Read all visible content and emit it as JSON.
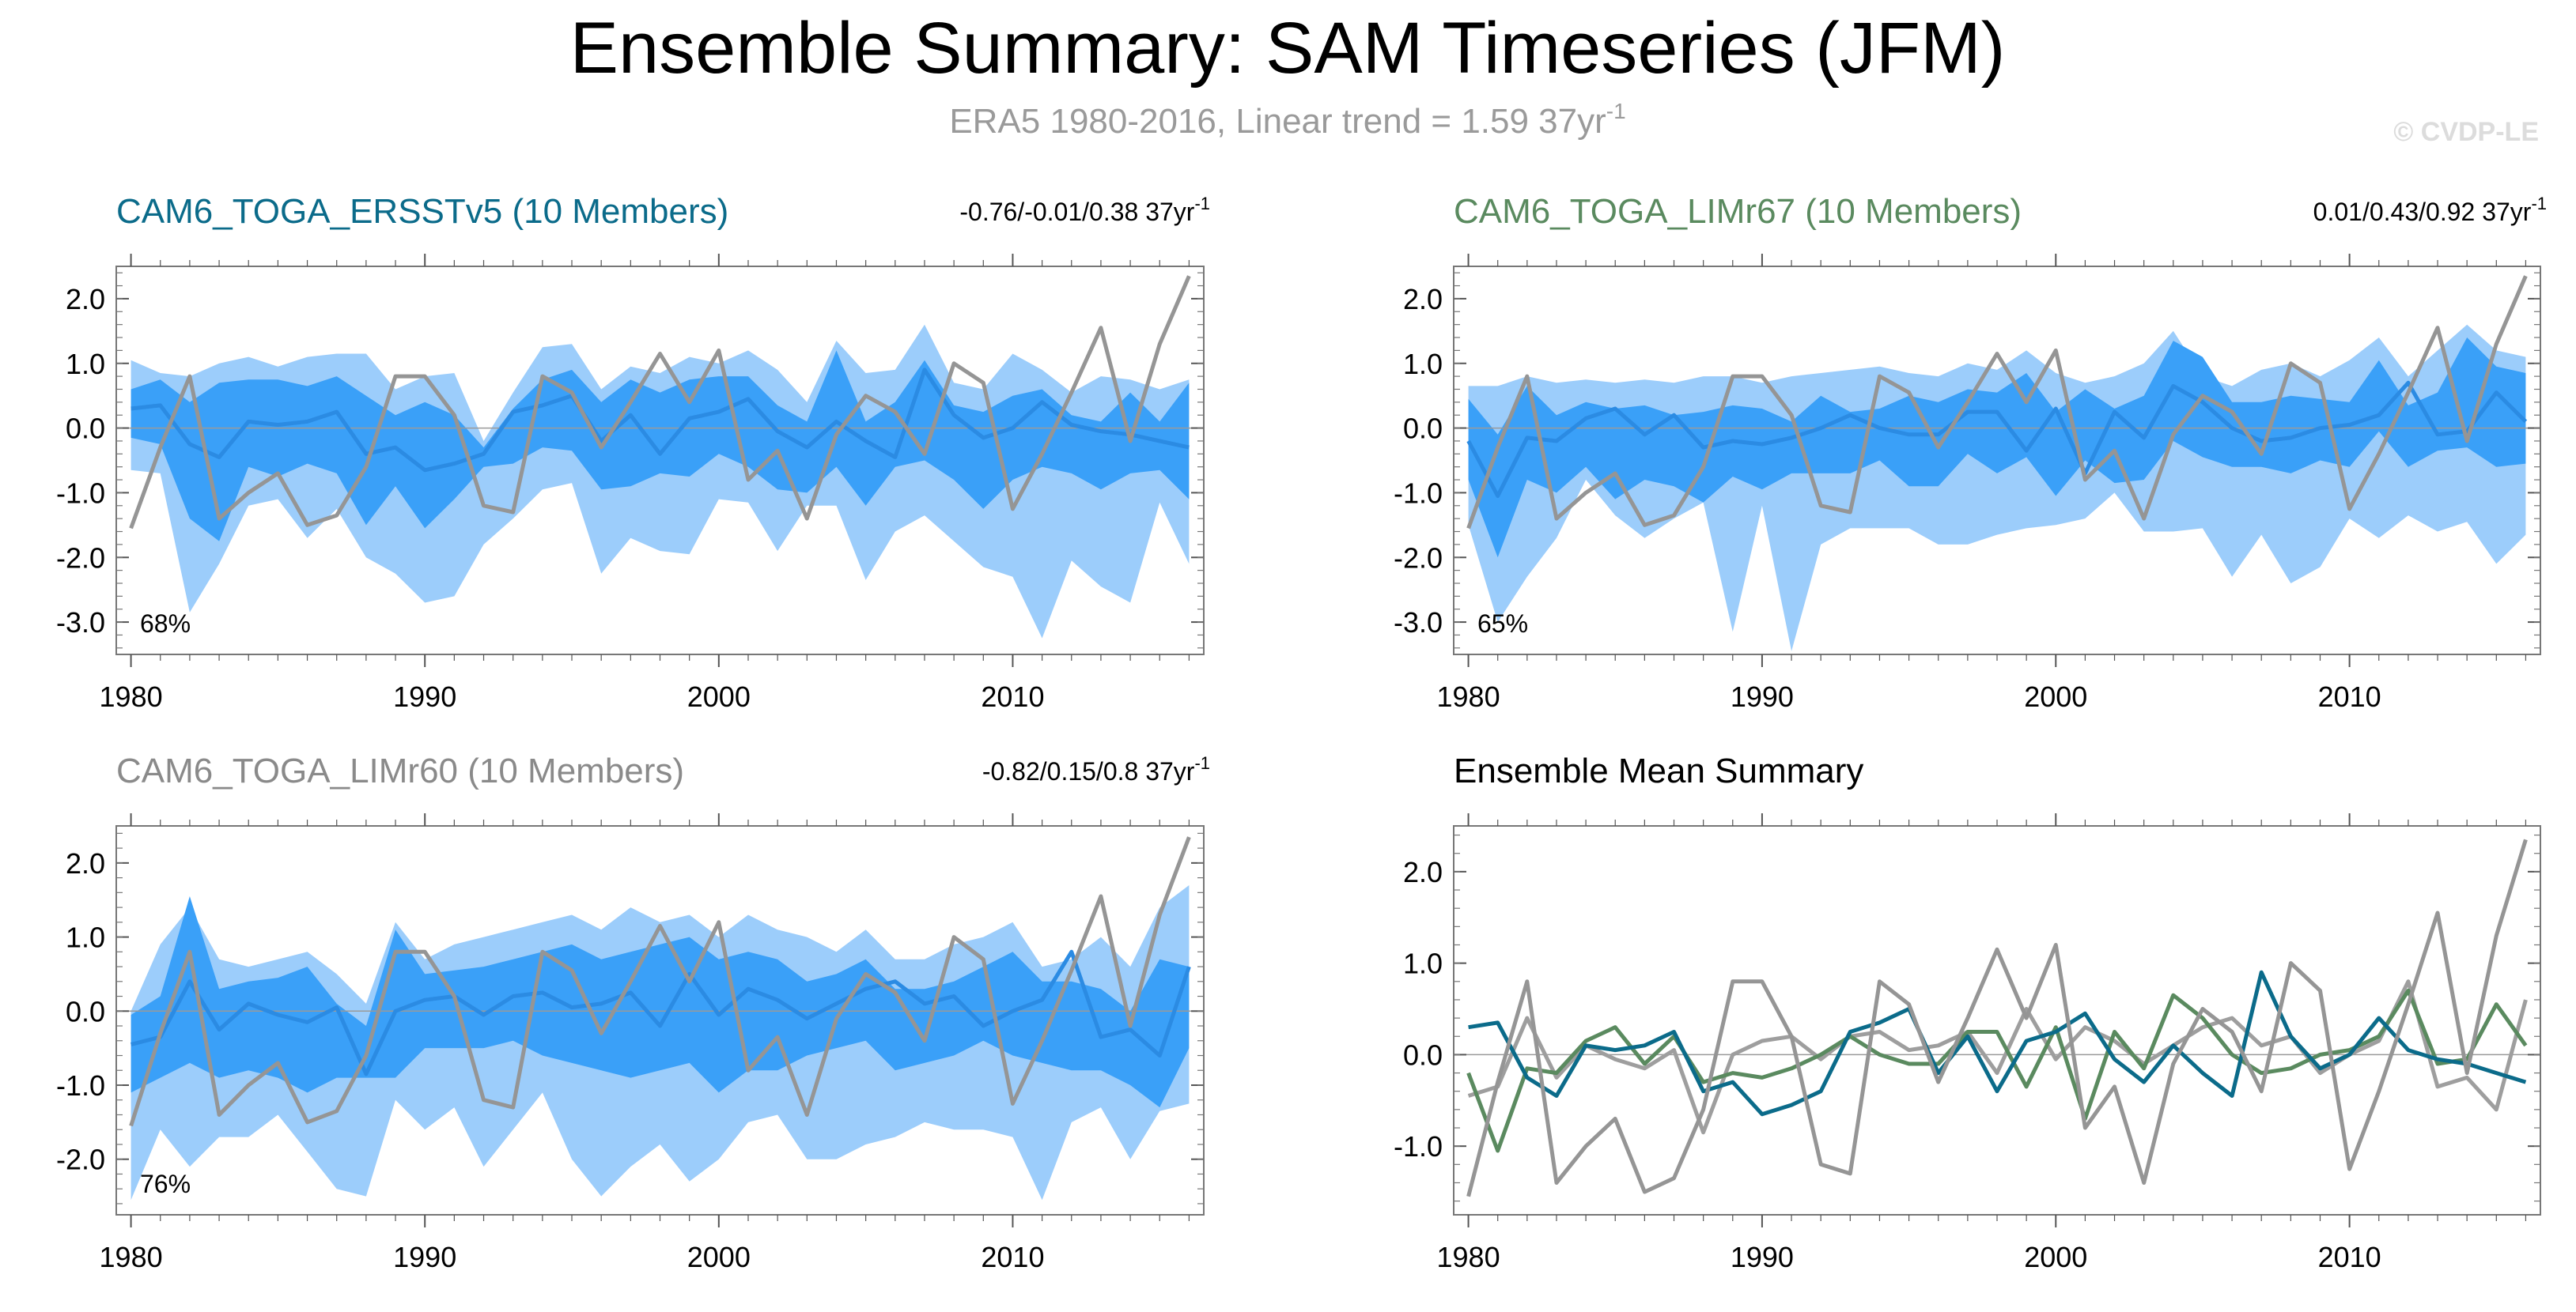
{
  "figure": {
    "title": "Ensemble Summary: SAM Timeseries (JFM)",
    "subtitle_main": "ERA5 1980-2016, Linear trend = 1.59 37yr",
    "subtitle_exp": "-1",
    "watermark": "© CVDP-LE"
  },
  "colors": {
    "band_outer": "#9ccdfb",
    "band_inner": "#3aa0f8",
    "ens_mean": "#2b8be3",
    "obs": "#959595",
    "title_erssr": "#0b6b8a",
    "title_lim67": "#5a8a5f",
    "title_lim60": "#8a8a8a",
    "summary_erssr": "#0b6b8a",
    "summary_lim67": "#5a8a5f",
    "summary_lim60": "#9e9e9e"
  },
  "chart_data": [
    {
      "type": "area",
      "title": "CAM6_TOGA_ERSSTv5 (10 Members)",
      "trend_text": "-0.76/-0.01/0.38 37yr",
      "trend_exp": "-1",
      "percent_label": "68%",
      "xlim": [
        1979.5,
        2016.5
      ],
      "ylim": [
        -3.5,
        2.5
      ],
      "x_ticks": [
        1980,
        1990,
        2000,
        2010
      ],
      "y_ticks": [
        -3.0,
        -2.0,
        -1.0,
        0.0,
        1.0,
        2.0
      ],
      "y_tick_labels": [
        "-3.0",
        "-2.0",
        "-1.0",
        "0.0",
        "1.0",
        "2.0"
      ],
      "x_start": 1980,
      "outer_upper": [
        1.05,
        0.85,
        0.8,
        1.0,
        1.1,
        0.95,
        1.1,
        1.15,
        1.15,
        0.6,
        0.8,
        0.85,
        -0.2,
        0.55,
        1.25,
        1.3,
        0.6,
        0.95,
        0.85,
        1.1,
        1.0,
        1.2,
        0.9,
        0.4,
        1.35,
        0.85,
        0.9,
        1.6,
        0.7,
        0.6,
        1.15,
        0.9,
        0.55,
        0.8,
        0.75,
        0.6,
        0.75
      ],
      "inner_upper": [
        0.6,
        0.75,
        0.4,
        0.7,
        0.75,
        0.75,
        0.65,
        0.8,
        0.5,
        0.2,
        0.4,
        0.2,
        -0.3,
        0.3,
        0.75,
        0.9,
        0.4,
        0.75,
        0.55,
        0.75,
        0.8,
        0.8,
        0.35,
        0.1,
        1.2,
        0.1,
        0.4,
        1.05,
        0.35,
        0.25,
        0.5,
        0.6,
        0.2,
        0.1,
        0.55,
        0.1,
        0.7
      ],
      "inner_lower": [
        -0.15,
        -0.25,
        -1.4,
        -1.75,
        -0.6,
        -0.75,
        -0.55,
        -0.7,
        -1.5,
        -0.9,
        -1.55,
        -1.1,
        -0.6,
        -0.55,
        -0.3,
        -0.35,
        -0.95,
        -0.9,
        -0.7,
        -0.75,
        -0.4,
        -0.6,
        -0.95,
        -1.0,
        -0.6,
        -1.2,
        -0.6,
        -0.5,
        -0.8,
        -1.25,
        -0.8,
        -0.6,
        -0.7,
        -0.95,
        -0.7,
        -0.65,
        -1.1
      ],
      "outer_lower": [
        -0.65,
        -0.7,
        -2.85,
        -2.1,
        -1.2,
        -1.1,
        -1.7,
        -1.25,
        -2.0,
        -2.25,
        -2.7,
        -2.6,
        -1.8,
        -1.4,
        -0.95,
        -0.85,
        -2.25,
        -1.7,
        -1.9,
        -1.95,
        -1.1,
        -1.15,
        -1.9,
        -1.2,
        -1.2,
        -2.35,
        -1.6,
        -1.35,
        -1.75,
        -2.15,
        -2.3,
        -3.25,
        -2.05,
        -2.45,
        -2.7,
        -1.15,
        -2.1
      ],
      "ens_mean": [
        0.3,
        0.35,
        -0.25,
        -0.45,
        0.1,
        0.05,
        0.1,
        0.25,
        -0.4,
        -0.3,
        -0.65,
        -0.55,
        -0.4,
        0.25,
        0.35,
        0.5,
        -0.2,
        0.2,
        -0.4,
        0.15,
        0.25,
        0.45,
        -0.05,
        -0.3,
        0.1,
        -0.2,
        -0.45,
        0.9,
        0.2,
        -0.15,
        0.0,
        0.4,
        0.05,
        -0.05,
        -0.1,
        -0.2,
        -0.3
      ],
      "obs": [
        -1.55,
        -0.3,
        0.8,
        -1.4,
        -1.0,
        -0.7,
        -1.5,
        -1.35,
        -0.6,
        0.8,
        0.8,
        0.2,
        -1.2,
        -1.3,
        0.8,
        0.55,
        -0.3,
        0.4,
        1.15,
        0.4,
        1.2,
        -0.8,
        -0.35,
        -1.4,
        -0.1,
        0.5,
        0.25,
        -0.4,
        1.0,
        0.7,
        -1.25,
        -0.4,
        0.55,
        1.55,
        -0.2,
        1.3,
        2.35
      ]
    },
    {
      "type": "area",
      "title": "CAM6_TOGA_LIMr67 (10 Members)",
      "trend_text": "0.01/0.43/0.92 37yr",
      "trend_exp": "-1",
      "percent_label": "65%",
      "xlim": [
        1979.5,
        2016.5
      ],
      "ylim": [
        -3.5,
        2.5
      ],
      "x_ticks": [
        1980,
        1990,
        2000,
        2010
      ],
      "y_ticks": [
        -3.0,
        -2.0,
        -1.0,
        0.0,
        1.0,
        2.0
      ],
      "y_tick_labels": [
        "-3.0",
        "-2.0",
        "-1.0",
        "0.0",
        "1.0",
        "2.0"
      ],
      "x_start": 1980,
      "outer_upper": [
        0.65,
        0.65,
        0.8,
        0.7,
        0.75,
        0.7,
        0.75,
        0.7,
        0.8,
        0.8,
        0.7,
        0.8,
        0.85,
        0.9,
        0.95,
        0.85,
        0.8,
        1.0,
        0.9,
        1.2,
        0.85,
        0.7,
        0.8,
        1.0,
        1.5,
        0.8,
        0.65,
        0.9,
        1.0,
        0.8,
        1.05,
        1.4,
        0.8,
        1.2,
        1.6,
        1.2,
        1.1
      ],
      "inner_upper": [
        0.45,
        -0.1,
        0.65,
        0.2,
        0.4,
        0.3,
        0.35,
        0.2,
        0.25,
        0.35,
        0.3,
        0.1,
        0.5,
        0.25,
        0.3,
        0.5,
        0.4,
        0.6,
        0.55,
        0.85,
        0.25,
        0.6,
        0.3,
        0.5,
        1.35,
        1.1,
        0.4,
        0.4,
        0.5,
        0.45,
        0.4,
        1.05,
        0.35,
        0.55,
        1.4,
        0.95,
        0.85
      ],
      "inner_lower": [
        -0.8,
        -2.0,
        -0.8,
        -1.0,
        -0.6,
        -1.1,
        -0.8,
        -0.9,
        -1.15,
        -0.75,
        -0.95,
        -0.7,
        -0.7,
        -0.7,
        -0.5,
        -0.9,
        -0.9,
        -0.4,
        -0.7,
        -0.45,
        -1.05,
        -0.5,
        -0.85,
        -0.8,
        -0.2,
        -0.45,
        -0.6,
        -0.6,
        -0.7,
        -0.5,
        -0.6,
        -0.05,
        -0.6,
        -0.35,
        -0.3,
        -0.6,
        -0.55
      ],
      "outer_lower": [
        -1.5,
        -3.0,
        -2.3,
        -1.7,
        -0.8,
        -1.35,
        -1.7,
        -1.4,
        -1.15,
        -3.15,
        -1.2,
        -3.45,
        -1.8,
        -1.55,
        -1.55,
        -1.55,
        -1.8,
        -1.8,
        -1.65,
        -1.55,
        -1.5,
        -1.4,
        -1.0,
        -1.6,
        -1.6,
        -1.55,
        -2.3,
        -1.65,
        -2.4,
        -2.15,
        -1.4,
        -1.7,
        -1.35,
        -1.6,
        -1.45,
        -2.1,
        -1.65
      ],
      "ens_mean": [
        -0.2,
        -1.05,
        -0.15,
        -0.2,
        0.15,
        0.3,
        -0.1,
        0.2,
        -0.3,
        -0.2,
        -0.25,
        -0.15,
        0.0,
        0.2,
        0.0,
        -0.1,
        -0.1,
        0.25,
        0.25,
        -0.35,
        0.3,
        -0.7,
        0.25,
        -0.15,
        0.65,
        0.4,
        0.0,
        -0.2,
        -0.15,
        0.0,
        0.05,
        0.2,
        0.7,
        -0.1,
        -0.05,
        0.55,
        0.1
      ],
      "obs": [
        -1.55,
        -0.3,
        0.8,
        -1.4,
        -1.0,
        -0.7,
        -1.5,
        -1.35,
        -0.6,
        0.8,
        0.8,
        0.2,
        -1.2,
        -1.3,
        0.8,
        0.55,
        -0.3,
        0.4,
        1.15,
        0.4,
        1.2,
        -0.8,
        -0.35,
        -1.4,
        -0.1,
        0.5,
        0.25,
        -0.4,
        1.0,
        0.7,
        -1.25,
        -0.4,
        0.55,
        1.55,
        -0.2,
        1.3,
        2.35
      ]
    },
    {
      "type": "area",
      "title": "CAM6_TOGA_LIMr60 (10 Members)",
      "trend_text": "-0.82/0.15/0.8 37yr",
      "trend_exp": "-1",
      "percent_label": "76%",
      "xlim": [
        1979.5,
        2016.5
      ],
      "ylim": [
        -2.75,
        2.5
      ],
      "x_ticks": [
        1980,
        1990,
        2000,
        2010
      ],
      "y_ticks": [
        -2.0,
        -1.0,
        0.0,
        1.0,
        2.0
      ],
      "y_tick_labels": [
        "-2.0",
        "-1.0",
        "0.0",
        "1.0",
        "2.0"
      ],
      "x_start": 1980,
      "outer_upper": [
        0.0,
        0.9,
        1.4,
        0.7,
        0.6,
        0.7,
        0.8,
        0.5,
        0.1,
        1.2,
        0.7,
        0.9,
        1.0,
        1.1,
        1.2,
        1.3,
        1.1,
        1.4,
        1.2,
        1.3,
        1.0,
        1.3,
        1.1,
        1.0,
        0.8,
        1.1,
        0.7,
        0.7,
        0.9,
        1.0,
        1.2,
        0.6,
        0.7,
        1.0,
        0.6,
        1.4,
        1.7
      ],
      "inner_upper": [
        -0.05,
        0.2,
        1.55,
        0.3,
        0.4,
        0.45,
        0.6,
        0.1,
        -0.2,
        1.1,
        0.5,
        0.55,
        0.6,
        0.7,
        0.8,
        0.9,
        0.7,
        0.8,
        0.9,
        1.0,
        0.7,
        0.8,
        0.7,
        0.4,
        0.5,
        0.7,
        0.3,
        0.3,
        0.4,
        0.6,
        0.8,
        0.4,
        0.4,
        0.3,
        0.0,
        0.7,
        0.6
      ],
      "inner_lower": [
        -1.1,
        -0.9,
        -0.7,
        -0.9,
        -0.8,
        -0.9,
        -1.1,
        -0.9,
        -0.9,
        -0.9,
        -0.5,
        -0.5,
        -0.5,
        -0.4,
        -0.6,
        -0.7,
        -0.8,
        -0.9,
        -0.8,
        -0.7,
        -1.1,
        -0.8,
        -0.8,
        -0.6,
        -0.5,
        -0.4,
        -0.8,
        -0.7,
        -0.6,
        -0.4,
        -0.6,
        -0.7,
        -0.8,
        -0.8,
        -1.0,
        -1.3,
        -0.5
      ],
      "outer_lower": [
        -2.55,
        -1.6,
        -2.1,
        -1.7,
        -1.7,
        -1.4,
        -1.9,
        -2.4,
        -2.5,
        -1.2,
        -1.6,
        -1.3,
        -2.1,
        -1.6,
        -1.1,
        -2.0,
        -2.5,
        -2.1,
        -1.8,
        -2.3,
        -2.0,
        -1.5,
        -1.4,
        -2.0,
        -2.0,
        -1.8,
        -1.7,
        -1.5,
        -1.6,
        -1.6,
        -1.7,
        -2.55,
        -1.5,
        -1.3,
        -2.0,
        -1.35,
        -1.25
      ],
      "ens_mean": [
        -0.45,
        -0.35,
        0.4,
        -0.25,
        0.1,
        -0.05,
        -0.15,
        0.05,
        -0.85,
        0.0,
        0.15,
        0.2,
        -0.05,
        0.2,
        0.25,
        0.05,
        0.1,
        0.25,
        -0.2,
        0.5,
        -0.05,
        0.3,
        0.15,
        -0.1,
        0.1,
        0.3,
        0.4,
        0.1,
        0.2,
        -0.2,
        0.0,
        0.15,
        0.8,
        -0.35,
        -0.25,
        -0.6,
        0.6
      ],
      "obs": [
        -1.55,
        -0.3,
        0.8,
        -1.4,
        -1.0,
        -0.7,
        -1.5,
        -1.35,
        -0.6,
        0.8,
        0.8,
        0.2,
        -1.2,
        -1.3,
        0.8,
        0.55,
        -0.3,
        0.4,
        1.15,
        0.4,
        1.2,
        -0.8,
        -0.35,
        -1.4,
        -0.1,
        0.5,
        0.25,
        -0.4,
        1.0,
        0.7,
        -1.25,
        -0.4,
        0.55,
        1.55,
        -0.2,
        1.3,
        2.35
      ]
    },
    {
      "type": "line",
      "title": "Ensemble Mean Summary",
      "xlim": [
        1979.5,
        2016.5
      ],
      "ylim": [
        -1.75,
        2.5
      ],
      "x_ticks": [
        1980,
        1990,
        2000,
        2010
      ],
      "y_ticks": [
        -1.0,
        0.0,
        1.0,
        2.0
      ],
      "y_tick_labels": [
        "-1.0",
        "0.0",
        "1.0",
        "2.0"
      ],
      "x_start": 1980,
      "series": [
        {
          "name": "LIMr60",
          "color_key": "summary_lim60",
          "values": [
            -0.45,
            -0.35,
            0.4,
            -0.25,
            0.1,
            -0.05,
            -0.15,
            0.05,
            -0.85,
            0.0,
            0.15,
            0.2,
            -0.05,
            0.2,
            0.25,
            0.05,
            0.1,
            0.25,
            -0.2,
            0.5,
            -0.05,
            0.3,
            0.15,
            -0.1,
            0.1,
            0.3,
            0.4,
            0.1,
            0.2,
            -0.2,
            0.0,
            0.15,
            0.8,
            -0.35,
            -0.25,
            -0.6,
            0.6
          ]
        },
        {
          "name": "LIMr67",
          "color_key": "summary_lim67",
          "values": [
            -0.2,
            -1.05,
            -0.15,
            -0.2,
            0.15,
            0.3,
            -0.1,
            0.2,
            -0.3,
            -0.2,
            -0.25,
            -0.15,
            0.0,
            0.2,
            0.0,
            -0.1,
            -0.1,
            0.25,
            0.25,
            -0.35,
            0.3,
            -0.7,
            0.25,
            -0.15,
            0.65,
            0.4,
            0.0,
            -0.2,
            -0.15,
            0.0,
            0.05,
            0.2,
            0.7,
            -0.1,
            -0.05,
            0.55,
            0.1
          ]
        },
        {
          "name": "ERSSTv5",
          "color_key": "summary_erssr",
          "values": [
            0.3,
            0.35,
            -0.25,
            -0.45,
            0.1,
            0.05,
            0.1,
            0.25,
            -0.4,
            -0.3,
            -0.65,
            -0.55,
            -0.4,
            0.25,
            0.35,
            0.5,
            -0.2,
            0.2,
            -0.4,
            0.15,
            0.25,
            0.45,
            -0.05,
            -0.3,
            0.1,
            -0.2,
            -0.45,
            0.9,
            0.2,
            -0.15,
            0.0,
            0.4,
            0.05,
            -0.05,
            -0.1,
            -0.2,
            -0.3
          ]
        },
        {
          "name": "ERA5",
          "color_key": "obs",
          "values": [
            -1.55,
            -0.3,
            0.8,
            -1.4,
            -1.0,
            -0.7,
            -1.5,
            -1.35,
            -0.6,
            0.8,
            0.8,
            0.2,
            -1.2,
            -1.3,
            0.8,
            0.55,
            -0.3,
            0.4,
            1.15,
            0.4,
            1.2,
            -0.8,
            -0.35,
            -1.4,
            -0.1,
            0.5,
            0.25,
            -0.4,
            1.0,
            0.7,
            -1.25,
            -0.4,
            0.55,
            1.55,
            -0.2,
            1.3,
            2.35
          ]
        }
      ]
    }
  ]
}
